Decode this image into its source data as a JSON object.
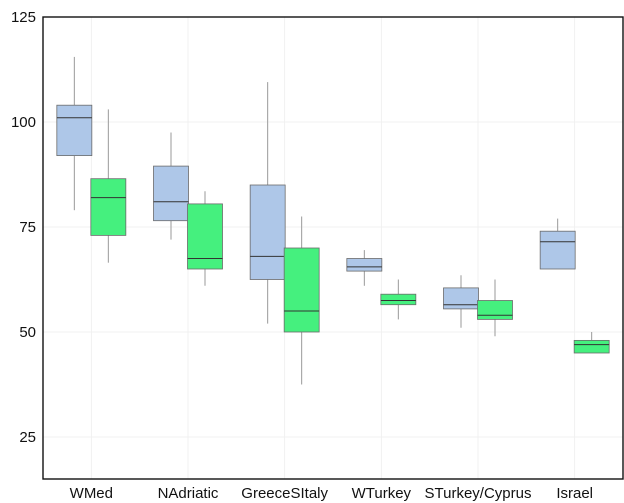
{
  "chart_data": {
    "type": "boxplot",
    "title": "",
    "xlabel": "",
    "ylabel": "",
    "ylim": [
      15,
      125
    ],
    "yticks": [
      25,
      50,
      75,
      100,
      125
    ],
    "grid": true,
    "legend": "none",
    "categories": [
      "WMed",
      "NAdriatic",
      "GreeceSItaly",
      "WTurkey",
      "STurkey/Cyprus",
      "Israel"
    ],
    "series": [
      {
        "color": "#aec7e8",
        "boxes": [
          {
            "min": 79,
            "q1": 92,
            "median": 101,
            "q3": 104,
            "max": 115.5
          },
          {
            "min": 72,
            "q1": 76.5,
            "median": 81,
            "q3": 89.5,
            "max": 97.5
          },
          {
            "min": 52,
            "q1": 62.5,
            "median": 68,
            "q3": 85,
            "max": 109.5
          },
          {
            "min": 61,
            "q1": 64.5,
            "median": 65.5,
            "q3": 67.5,
            "max": 69.5
          },
          {
            "min": 51,
            "q1": 55.5,
            "median": 56.5,
            "q3": 60.5,
            "max": 63.5
          },
          {
            "min": 65,
            "q1": 65,
            "median": 71.5,
            "q3": 74,
            "max": 77
          }
        ]
      },
      {
        "color": "#45f07e",
        "boxes": [
          {
            "min": 66.5,
            "q1": 73,
            "median": 82,
            "q3": 86.5,
            "max": 103
          },
          {
            "min": 61,
            "q1": 65,
            "median": 67.5,
            "q3": 80.5,
            "max": 83.5
          },
          {
            "min": 37.5,
            "q1": 50,
            "median": 55,
            "q3": 70,
            "max": 77.5
          },
          {
            "min": 53,
            "q1": 56.5,
            "median": 57.5,
            "q3": 59,
            "max": 62.5
          },
          {
            "min": 49,
            "q1": 53,
            "median": 54,
            "q3": 57.5,
            "max": 62.5
          },
          {
            "min": 45,
            "q1": 45,
            "median": 47,
            "q3": 48,
            "max": 50
          }
        ]
      }
    ]
  }
}
